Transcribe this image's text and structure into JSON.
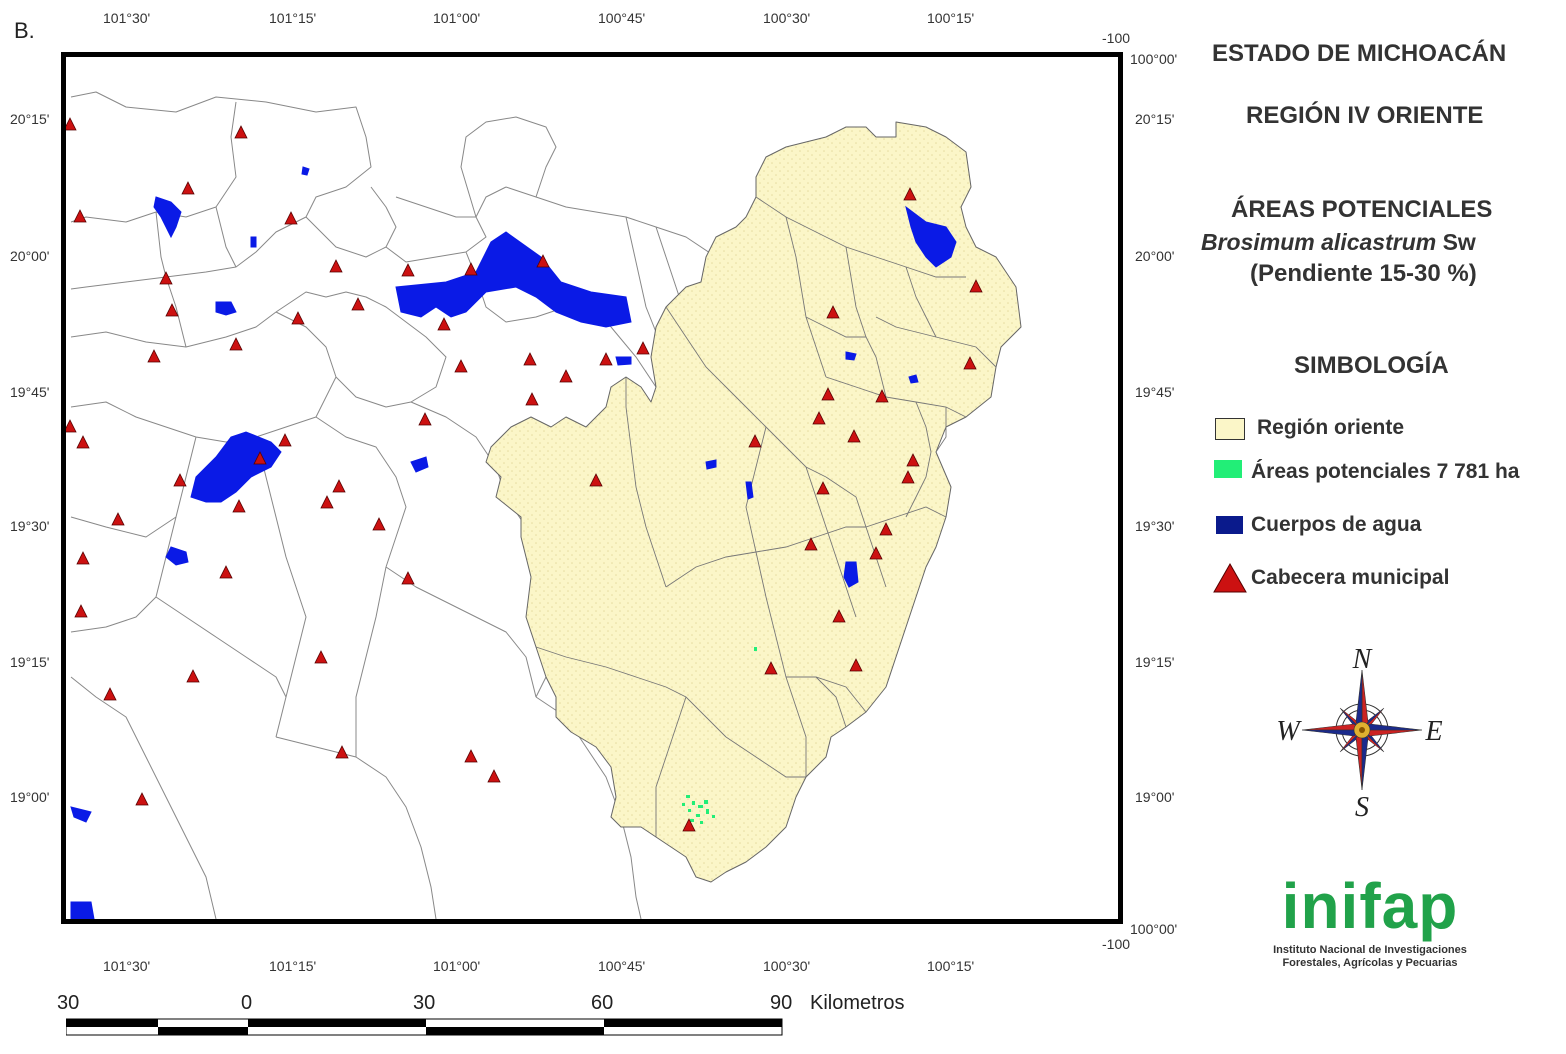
{
  "panel_label": "B.",
  "title": {
    "state": "ESTADO DE MICHOACÁN",
    "region": "REGIÓN IV ORIENTE",
    "heading": "ÁREAS POTENCIALES",
    "species_italic": "Brosimum alicastrum",
    "species_author": "Sw",
    "slope": "(Pendiente 15-30 %)"
  },
  "legend": {
    "heading": "SIMBOLOGÍA",
    "items": [
      {
        "label": "Región oriente",
        "color": "#fbf6c8"
      },
      {
        "label": "Áreas potenciales 7 781 ha",
        "color": "#22ee77"
      },
      {
        "label": "Cuerpos de agua",
        "color": "#0a1a8c"
      },
      {
        "label": "Cabecera municipal",
        "color": "#cc1111"
      }
    ]
  },
  "axis_ticks": {
    "top_bottom": [
      "101°30'",
      "101°15'",
      "101°00'",
      "100°45'",
      "100°30'",
      "100°15'"
    ],
    "left": [
      "20°15'",
      "20°00'",
      "19°45'",
      "19°30'",
      "19°15'",
      "19°00'"
    ],
    "right": [
      "100°00'",
      "20°15'",
      "20°00'",
      "19°45'",
      "19°30'",
      "19°15'",
      "19°00'",
      "100°00'"
    ],
    "corner_top": "-100",
    "corner_bottom": "-100"
  },
  "compass": {
    "north": "N",
    "south": "S",
    "east": "E",
    "west": "W"
  },
  "scale_bar": {
    "labels": [
      "30",
      "0",
      "30",
      "60",
      "90"
    ],
    "unit": "Kilometros"
  },
  "logo": {
    "word": "inifap",
    "line1": "Instituto Nacional de Investigaciones",
    "line2": "Forestales, Agrícolas y Pecuarias"
  },
  "colors": {
    "region": "#fbf6c8",
    "potential": "#22ee77",
    "water": "#0a1ae6",
    "municipal_seat": "#cc1111",
    "frame": "#000000"
  }
}
